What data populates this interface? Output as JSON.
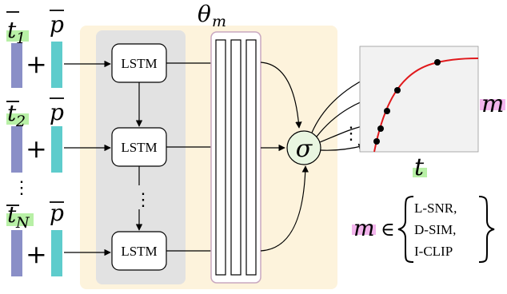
{
  "model_label": "θ",
  "model_subscript": "m",
  "lstm_label": "LSTM",
  "inputs": [
    {
      "token": "t",
      "subscript": "1",
      "prompt": "p"
    },
    {
      "token": "t",
      "subscript": "2",
      "prompt": "p"
    },
    {
      "token": "t",
      "subscript": "N",
      "prompt": "p"
    }
  ],
  "plus": "+",
  "vertical_ellipsis": "⋮",
  "activation": "σ",
  "plot": {
    "y_label": "m",
    "x_label": "t",
    "curve_color": "#e0191c",
    "dot_color": "#000000"
  },
  "metric_set": {
    "symbol": "m",
    "in": "∈",
    "items": [
      "L-SNR,",
      "D-SIM,",
      "I-CLIP"
    ]
  },
  "colors": {
    "token_bar": "#8a8fc7",
    "prompt_bar": "#5ecccc",
    "outer_panel": "#fdf3dc",
    "lstm_panel": "#e2e2e2",
    "linear_block_border": "#c9a8c0",
    "sigma_fill": "#e9f6e1",
    "highlight_green": "#b8f0a6",
    "highlight_pink": "#f2b4ec"
  }
}
